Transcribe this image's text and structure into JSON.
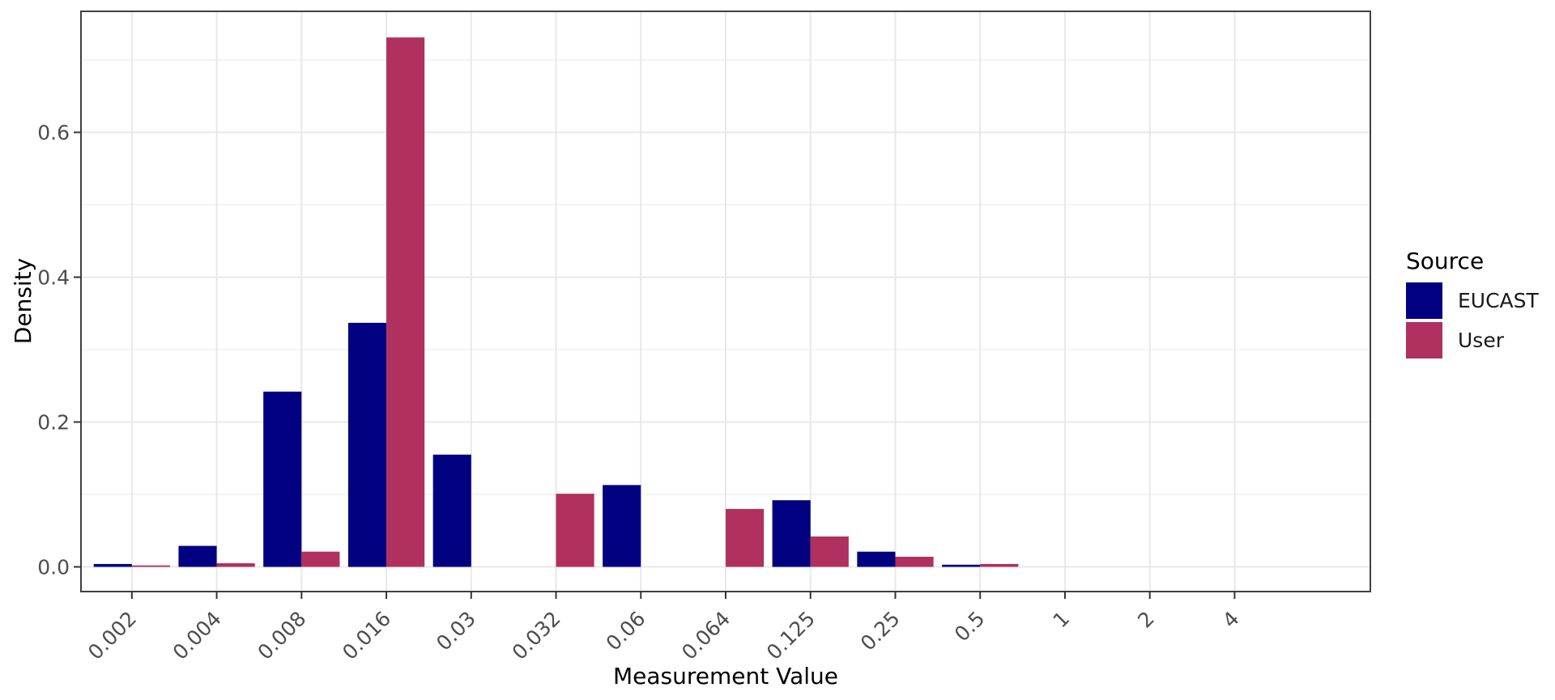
{
  "figure": {
    "background": "#ffffff"
  },
  "chart_data": {
    "type": "bar",
    "bar_mode": "dodge",
    "title": "",
    "xlabel": "Measurement Value",
    "ylabel": "Density",
    "categories": [
      "0.002",
      "0.004",
      "0.008",
      "0.016",
      "0.03",
      "0.032",
      "0.06",
      "0.064",
      "0.125",
      "0.25",
      "0.5",
      "1",
      "2",
      "4"
    ],
    "series": [
      {
        "name": "EUCAST",
        "color": "#000080",
        "values": [
          0.004,
          0.029,
          0.242,
          0.337,
          0.155,
          0,
          0.113,
          0,
          0.092,
          0.021,
          0.003,
          0,
          0,
          0
        ]
      },
      {
        "name": "User",
        "color": "#B03060",
        "values": [
          0.002,
          0.005,
          0.021,
          0.731,
          0,
          0.101,
          0,
          0.08,
          0.042,
          0.014,
          0.004,
          0,
          0,
          0
        ]
      }
    ],
    "y_ticks": {
      "values": [
        0,
        0.2,
        0.4,
        0.6
      ],
      "labels": [
        "0.0",
        "0.2",
        "0.4",
        "0.6"
      ]
    },
    "y_minor": [
      0.1,
      0.3,
      0.5,
      0.7
    ],
    "ylim": [
      -0.037,
      0.767
    ],
    "x_tick_angle": 45,
    "grid": true,
    "legend": {
      "title": "Source",
      "position": "right"
    }
  },
  "style_colors": {
    "grid_major": "#e8e8e8",
    "grid_minor": "#f0f0f0",
    "panel_border": "#404040",
    "tick_mark": "#333333",
    "axis_text": "#4d4d4d"
  }
}
